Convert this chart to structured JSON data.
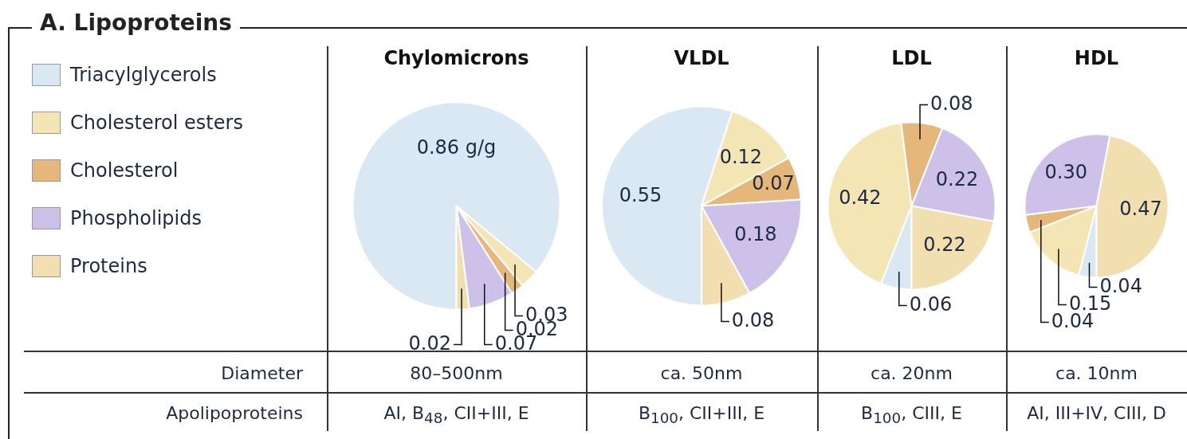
{
  "chart_data": [
    {
      "type": "other",
      "title": "A. Lipoproteins",
      "annotations": [
        "Diameter",
        "Apolipoproteins"
      ]
    },
    {
      "type": "pie",
      "title": "Chylomicrons",
      "categories": [
        "Triacylglycerols",
        "Cholesterol esters",
        "Cholesterol",
        "Phospholipids",
        "Proteins"
      ],
      "values": [
        0.86,
        0.03,
        0.02,
        0.07,
        0.02
      ],
      "value_labels": [
        "0.86 g/g",
        "0.03",
        "0.02",
        "0.07",
        "0.02"
      ],
      "colors": [
        "#d9e8f3",
        "#f4e6b4",
        "#e6b77a",
        "#cdc1ea",
        "#f2dfb0"
      ],
      "legend": "left",
      "annotations": [
        "80–500nm",
        "AI, B$_{48}$, CII+III, E"
      ]
    },
    {
      "type": "pie",
      "title": "VLDL",
      "categories": [
        null,
        null,
        null,
        null,
        null
      ],
      "values": [
        0.55,
        0.12,
        0.07,
        0.18,
        0.08
      ],
      "value_labels": [
        "0.55",
        "0.12",
        "0.07",
        "0.18",
        "0.08"
      ],
      "colors": [
        "#d9e8f3",
        "#f4e6b4",
        "#e6b77a",
        "#cdc1ea",
        "#f2dfb0"
      ],
      "annotations": [
        "ca. 50nm",
        "B$_{100}$, CII+III, E"
      ]
    },
    {
      "type": "pie",
      "title": "LDL",
      "categories": [
        null,
        null,
        null,
        null,
        null
      ],
      "values": [
        0.06,
        0.42,
        0.08,
        0.22,
        0.22
      ],
      "value_labels": [
        "0.06",
        "0.42",
        "0.08",
        "0.22",
        "0.22"
      ],
      "colors": [
        "#d9e8f3",
        "#f4e6b4",
        "#e6b77a",
        "#cdc1ea",
        "#f2dfb0"
      ],
      "annotations": [
        "ca. 20nm",
        "B$_{100}$, CIII, E"
      ]
    },
    {
      "type": "pie",
      "title": "HDL",
      "categories": [
        null,
        null,
        null,
        null,
        null
      ],
      "values": [
        0.04,
        0.15,
        0.04,
        0.3,
        0.47
      ],
      "value_labels": [
        "0.04",
        "0.15",
        "0.04",
        "0.30",
        "0.47"
      ],
      "colors": [
        "#d9e8f3",
        "#f4e6b4",
        "#e6b77a",
        "#cdc1ea",
        "#f2dfb0"
      ],
      "annotations": [
        "ca. 10nm",
        "AI, III+IV, CIII, D"
      ]
    }
  ]
}
